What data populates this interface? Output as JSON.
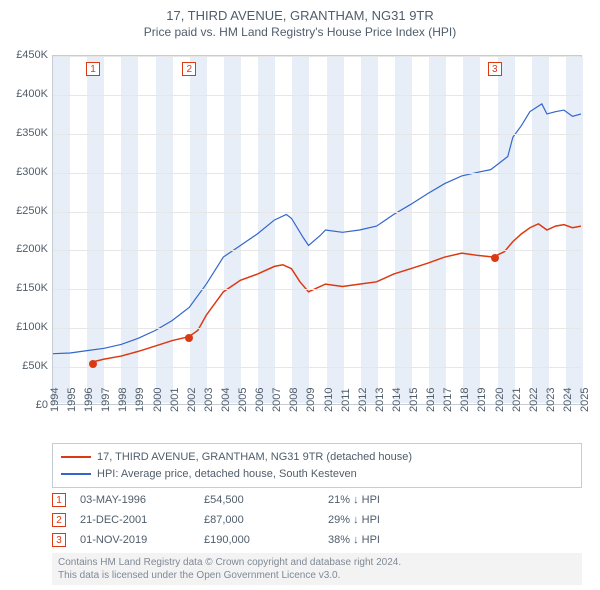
{
  "title": "17, THIRD AVENUE, GRANTHAM, NG31 9TR",
  "subtitle": "Price paid vs. HM Land Registry's House Price Index (HPI)",
  "chart": {
    "type": "line",
    "background_color": "#ffffff",
    "grid_color": "#e6e6e6",
    "border_color": "#c4cdd5",
    "ylim": [
      0,
      450000
    ],
    "ytick_step": 50000,
    "yticks": [
      "£0",
      "£50K",
      "£100K",
      "£150K",
      "£200K",
      "£250K",
      "£300K",
      "£350K",
      "£400K",
      "£450K"
    ],
    "xlim": [
      1994,
      2025
    ],
    "xticks": [
      1994,
      1995,
      1996,
      1997,
      1998,
      1999,
      2000,
      2001,
      2002,
      2003,
      2004,
      2005,
      2006,
      2007,
      2008,
      2009,
      2010,
      2011,
      2012,
      2013,
      2014,
      2015,
      2016,
      2017,
      2018,
      2019,
      2020,
      2021,
      2022,
      2023,
      2024,
      2025
    ],
    "vband_color": "#e8eef7",
    "marker_color": "#dc3912",
    "series": [
      {
        "name": "price_paid",
        "label": "17, THIRD AVENUE, GRANTHAM, NG31 9TR (detached house)",
        "color": "#dc3912",
        "line_width": 1.5,
        "points": [
          [
            1996.34,
            54500
          ],
          [
            1997,
            58000
          ],
          [
            1998,
            62000
          ],
          [
            1999,
            68000
          ],
          [
            2000,
            75000
          ],
          [
            2001,
            82000
          ],
          [
            2001.97,
            87000
          ],
          [
            2002.5,
            95000
          ],
          [
            2003,
            115000
          ],
          [
            2004,
            145000
          ],
          [
            2005,
            160000
          ],
          [
            2006,
            168000
          ],
          [
            2007,
            178000
          ],
          [
            2007.5,
            180000
          ],
          [
            2008,
            175000
          ],
          [
            2008.5,
            158000
          ],
          [
            2009,
            145000
          ],
          [
            2009.5,
            150000
          ],
          [
            2010,
            155000
          ],
          [
            2011,
            152000
          ],
          [
            2012,
            155000
          ],
          [
            2013,
            158000
          ],
          [
            2014,
            168000
          ],
          [
            2015,
            175000
          ],
          [
            2016,
            182000
          ],
          [
            2017,
            190000
          ],
          [
            2018,
            195000
          ],
          [
            2019,
            192000
          ],
          [
            2019.84,
            190000
          ],
          [
            2020.5,
            197000
          ],
          [
            2021,
            210000
          ],
          [
            2021.5,
            220000
          ],
          [
            2022,
            228000
          ],
          [
            2022.5,
            233000
          ],
          [
            2023,
            225000
          ],
          [
            2023.5,
            230000
          ],
          [
            2024,
            232000
          ],
          [
            2024.5,
            228000
          ],
          [
            2025,
            230000
          ]
        ],
        "sale_dots": [
          [
            1996.34,
            54500
          ],
          [
            2001.97,
            87000
          ],
          [
            2019.84,
            190000
          ]
        ]
      },
      {
        "name": "hpi",
        "label": "HPI: Average price, detached house, South Kesteven",
        "color": "#3366cc",
        "line_width": 1.2,
        "points": [
          [
            1994,
            65000
          ],
          [
            1995,
            66000
          ],
          [
            1996,
            69000
          ],
          [
            1997,
            72000
          ],
          [
            1998,
            77000
          ],
          [
            1999,
            85000
          ],
          [
            2000,
            95000
          ],
          [
            2001,
            108000
          ],
          [
            2002,
            125000
          ],
          [
            2003,
            155000
          ],
          [
            2004,
            190000
          ],
          [
            2005,
            205000
          ],
          [
            2006,
            220000
          ],
          [
            2007,
            238000
          ],
          [
            2007.7,
            245000
          ],
          [
            2008,
            240000
          ],
          [
            2008.7,
            215000
          ],
          [
            2009,
            205000
          ],
          [
            2009.7,
            218000
          ],
          [
            2010,
            225000
          ],
          [
            2011,
            222000
          ],
          [
            2012,
            225000
          ],
          [
            2013,
            230000
          ],
          [
            2014,
            245000
          ],
          [
            2015,
            258000
          ],
          [
            2016,
            272000
          ],
          [
            2017,
            285000
          ],
          [
            2018,
            295000
          ],
          [
            2019,
            300000
          ],
          [
            2019.7,
            303000
          ],
          [
            2020,
            308000
          ],
          [
            2020.7,
            320000
          ],
          [
            2021,
            345000
          ],
          [
            2021.5,
            360000
          ],
          [
            2022,
            378000
          ],
          [
            2022.7,
            388000
          ],
          [
            2023,
            375000
          ],
          [
            2023.5,
            378000
          ],
          [
            2024,
            380000
          ],
          [
            2024.5,
            372000
          ],
          [
            2025,
            375000
          ]
        ]
      }
    ],
    "markers": [
      {
        "n": "1",
        "x": 1996.34
      },
      {
        "n": "2",
        "x": 2001.97
      },
      {
        "n": "3",
        "x": 2019.84
      }
    ]
  },
  "legend": {
    "items": [
      {
        "color": "#dc3912",
        "label": "17, THIRD AVENUE, GRANTHAM, NG31 9TR (detached house)"
      },
      {
        "color": "#3366cc",
        "label": "HPI: Average price, detached house, South Kesteven"
      }
    ]
  },
  "sales": [
    {
      "n": "1",
      "date": "03-MAY-1996",
      "price": "£54,500",
      "diff": "21% ↓ HPI"
    },
    {
      "n": "2",
      "date": "21-DEC-2001",
      "price": "£87,000",
      "diff": "29% ↓ HPI"
    },
    {
      "n": "3",
      "date": "01-NOV-2019",
      "price": "£190,000",
      "diff": "38% ↓ HPI"
    }
  ],
  "footer_line1": "Contains HM Land Registry data © Crown copyright and database right 2024.",
  "footer_line2": "This data is licensed under the Open Government Licence v3.0."
}
